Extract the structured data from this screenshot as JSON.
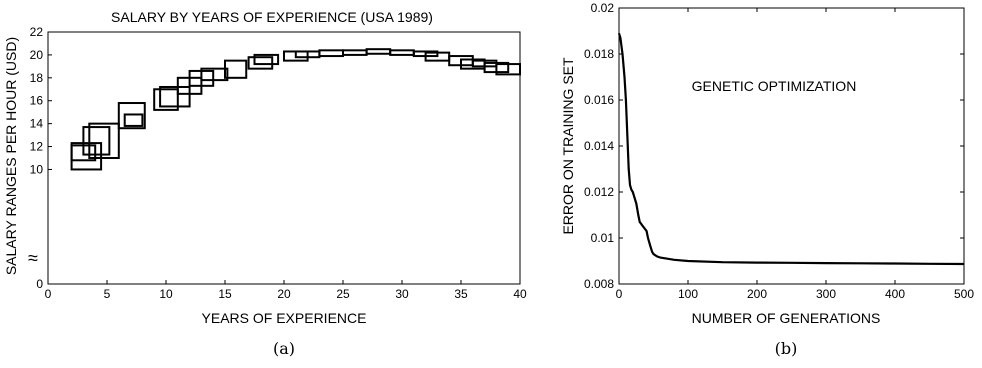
{
  "chart_data": [
    {
      "type": "scatter",
      "title": "SALARY BY YEARS OF EXPERIENCE (USA 1989)",
      "xlabel": "YEARS OF EXPERIENCE",
      "ylabel": "SALARY RANGES PER HOUR (USD)",
      "xlim": [
        0,
        40
      ],
      "ylim": [
        0,
        22
      ],
      "y_axis_break": "≈",
      "xticks": [
        "0",
        "5",
        "10",
        "15",
        "20",
        "25",
        "30",
        "35",
        "40"
      ],
      "yticks": [
        "0",
        "10",
        "12",
        "14",
        "16",
        "18",
        "20",
        "22"
      ],
      "caption": "(a)",
      "series": [
        {
          "boxes": [
            {
              "x": [
                2,
                4.5
              ],
              "y": [
                10.0,
                12.3
              ]
            },
            {
              "x": [
                2,
                4.0
              ],
              "y": [
                10.8,
                12.1
              ]
            },
            {
              "x": [
                3,
                5.2
              ],
              "y": [
                11.3,
                13.7
              ]
            },
            {
              "x": [
                3.5,
                6.0
              ],
              "y": [
                11.0,
                14.0
              ]
            },
            {
              "x": [
                6,
                8.2
              ],
              "y": [
                13.6,
                15.8
              ]
            },
            {
              "x": [
                6.5,
                8.0
              ],
              "y": [
                13.8,
                14.8
              ]
            },
            {
              "x": [
                9,
                11.0
              ],
              "y": [
                15.2,
                17.0
              ]
            },
            {
              "x": [
                9.5,
                12.0
              ],
              "y": [
                15.5,
                17.2
              ]
            },
            {
              "x": [
                11,
                13.0
              ],
              "y": [
                16.6,
                18.0
              ]
            },
            {
              "x": [
                12,
                14.0
              ],
              "y": [
                17.3,
                18.6
              ]
            },
            {
              "x": [
                13,
                15.2
              ],
              "y": [
                17.8,
                18.8
              ]
            },
            {
              "x": [
                15,
                16.8
              ],
              "y": [
                18.0,
                19.5
              ]
            },
            {
              "x": [
                17,
                19.0
              ],
              "y": [
                18.8,
                19.8
              ]
            },
            {
              "x": [
                17.5,
                19.5
              ],
              "y": [
                19.2,
                20.0
              ]
            },
            {
              "x": [
                20,
                22.0
              ],
              "y": [
                19.5,
                20.3
              ]
            },
            {
              "x": [
                21,
                23.0
              ],
              "y": [
                19.8,
                20.3
              ]
            },
            {
              "x": [
                23,
                25.0
              ],
              "y": [
                19.9,
                20.4
              ]
            },
            {
              "x": [
                25,
                27.0
              ],
              "y": [
                20.0,
                20.4
              ]
            },
            {
              "x": [
                27,
                29.0
              ],
              "y": [
                20.1,
                20.5
              ]
            },
            {
              "x": [
                29,
                31.0
              ],
              "y": [
                20.0,
                20.4
              ]
            },
            {
              "x": [
                31,
                33.0
              ],
              "y": [
                19.9,
                20.3
              ]
            },
            {
              "x": [
                32,
                34.0
              ],
              "y": [
                19.5,
                20.2
              ]
            },
            {
              "x": [
                34,
                36.0
              ],
              "y": [
                19.1,
                19.9
              ]
            },
            {
              "x": [
                35,
                37.0
              ],
              "y": [
                18.8,
                19.6
              ]
            },
            {
              "x": [
                36,
                38.0
              ],
              "y": [
                19.0,
                19.5
              ]
            },
            {
              "x": [
                37,
                39.0
              ],
              "y": [
                18.5,
                19.3
              ]
            },
            {
              "x": [
                38,
                40.0
              ],
              "y": [
                18.3,
                19.2
              ]
            }
          ]
        }
      ]
    },
    {
      "type": "line",
      "title": "GENETIC OPTIMIZATION",
      "xlabel": "NUMBER OF GENERATIONS",
      "ylabel": "ERROR ON TRAINING SET",
      "xlim": [
        0,
        500
      ],
      "ylim": [
        0.008,
        0.02
      ],
      "xticks": [
        "0",
        "100",
        "200",
        "300",
        "400",
        "500"
      ],
      "yticks": [
        "0.008",
        "0.01",
        "0.012",
        "0.014",
        "0.016",
        "0.018",
        "0.02"
      ],
      "caption": "(b)",
      "series": [
        {
          "x": [
            0,
            2,
            5,
            8,
            10,
            12,
            14,
            16,
            18,
            20,
            25,
            28,
            30,
            35,
            40,
            42,
            45,
            48,
            50,
            55,
            60,
            70,
            80,
            100,
            150,
            200,
            250,
            300,
            350,
            400,
            450,
            500
          ],
          "y": [
            0.0189,
            0.0187,
            0.018,
            0.017,
            0.016,
            0.0145,
            0.013,
            0.0123,
            0.0121,
            0.012,
            0.0115,
            0.011,
            0.0107,
            0.0105,
            0.0103,
            0.01,
            0.0097,
            0.0094,
            0.0093,
            0.0092,
            0.00915,
            0.0091,
            0.00905,
            0.009,
            0.00895,
            0.00893,
            0.00892,
            0.00891,
            0.0089,
            0.00889,
            0.00888,
            0.00887
          ]
        }
      ]
    }
  ]
}
